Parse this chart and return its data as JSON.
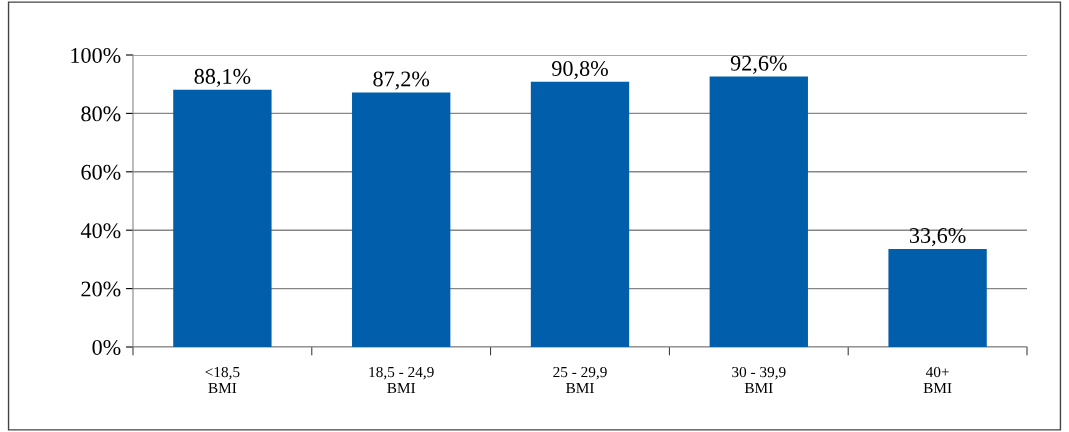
{
  "chart_data": {
    "type": "bar",
    "categories": [
      "<18,5\nBMI",
      "18,5 - 24,9\nBMI",
      "25 - 29,9\nBMI",
      "30 - 39,9\nBMI",
      "40+\nBMI"
    ],
    "values": [
      88.1,
      87.2,
      90.8,
      92.6,
      33.6
    ],
    "value_labels": [
      "88,1%",
      "87,2%",
      "90,8%",
      "92,6%",
      "33,6%"
    ],
    "color": "#005eaa",
    "ylim": [
      0,
      100
    ],
    "yticks": [
      {
        "value": 0,
        "label": "0%"
      },
      {
        "value": 20,
        "label": "20%"
      },
      {
        "value": 40,
        "label": "40%"
      },
      {
        "value": 60,
        "label": "60%"
      },
      {
        "value": 80,
        "label": "80%"
      },
      {
        "value": 100,
        "label": "100%"
      }
    ],
    "grid": "y",
    "legend": false
  }
}
